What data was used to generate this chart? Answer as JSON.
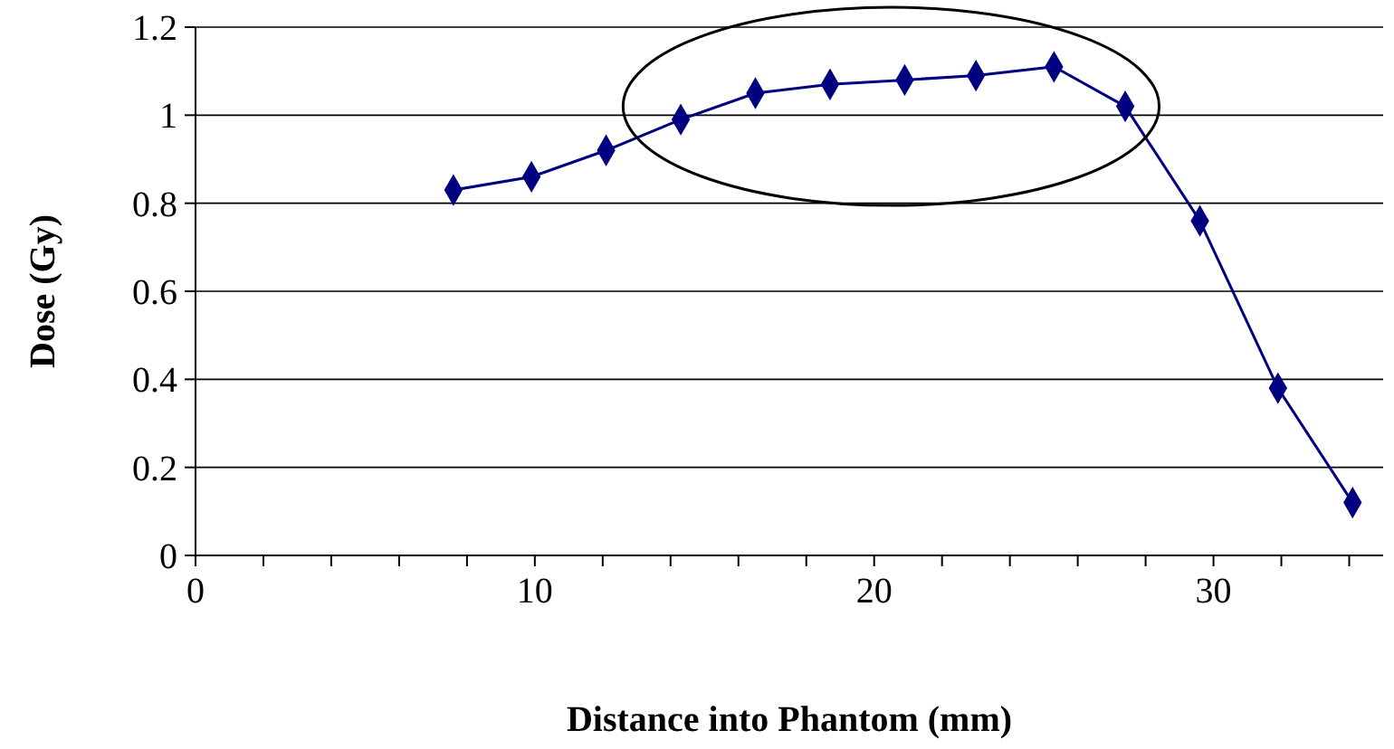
{
  "chart_data": {
    "type": "line",
    "xlabel": "Distance into Phantom (mm)",
    "ylabel": "Dose (Gy)",
    "x": [
      7.6,
      9.9,
      12.1,
      14.3,
      16.5,
      18.7,
      20.9,
      23.0,
      25.3,
      27.4,
      29.6,
      31.9,
      34.1
    ],
    "series": [
      {
        "color": "#000080",
        "values": [
          0.83,
          0.86,
          0.92,
          0.99,
          1.05,
          1.07,
          1.08,
          1.09,
          1.11,
          1.02,
          0.76,
          0.38,
          0.12
        ]
      }
    ],
    "xlim": [
      0,
      35
    ],
    "xticks": [
      0,
      {
        "value": 2,
        "label": null
      },
      {
        "value": 4,
        "label": null
      },
      {
        "value": 6,
        "label": null
      },
      {
        "value": 8,
        "label": null
      },
      10,
      {
        "value": 12,
        "label": null
      },
      {
        "value": 14,
        "label": null
      },
      {
        "value": 16,
        "label": null
      },
      {
        "value": 18,
        "label": null
      },
      20,
      {
        "value": 22,
        "label": null
      },
      {
        "value": 24,
        "label": null
      },
      {
        "value": 26,
        "label": null
      },
      {
        "value": 28,
        "label": null
      },
      30,
      {
        "value": 32,
        "label": null
      },
      {
        "value": 34,
        "label": null
      }
    ],
    "ylim": [
      0,
      1.2
    ],
    "yticks": [
      0,
      0.2,
      0.4,
      0.6,
      0.8,
      1,
      1.2
    ],
    "grid": "y",
    "marker": "diamond",
    "line_style": "solid"
  }
}
